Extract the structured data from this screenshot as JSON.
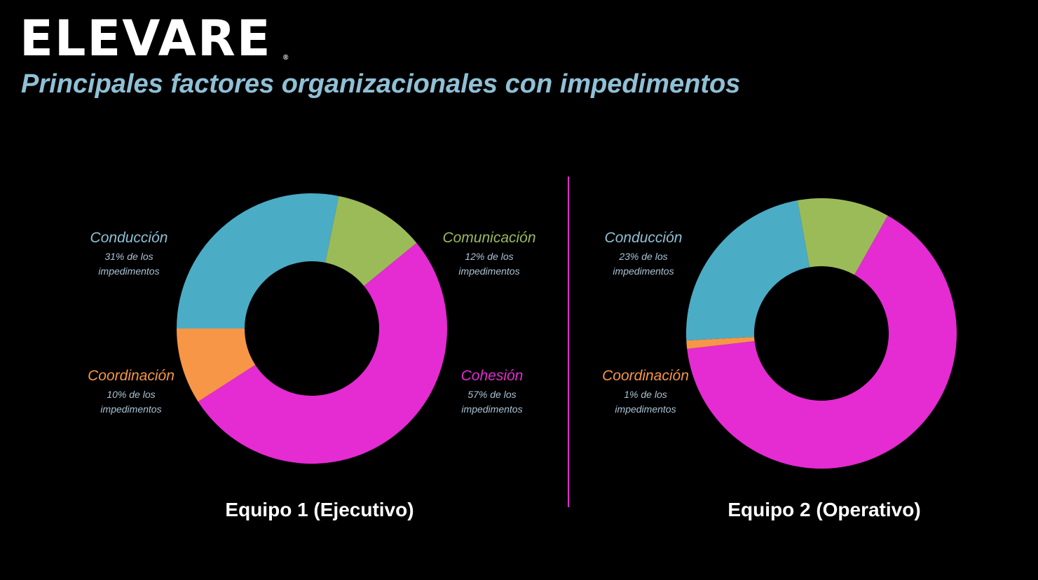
{
  "header": {
    "brand": "ELEVARE",
    "brand_mark": "®",
    "title": "Principales factores organizacionales con impedimentos"
  },
  "colors": {
    "conduccion": "#4bacc6",
    "comunicacion": "#9bbb59",
    "cohesion": "#e52bd2",
    "coordinacion": "#f79646"
  },
  "chart_data": [
    {
      "type": "pie",
      "variant": "donut",
      "title": "Equipo 1 (Ejecutivo)",
      "slices": [
        {
          "name": "Conducción",
          "value": 31,
          "color": "#4bacc6",
          "label_line1": "31% de los",
          "label_line2": "impedimentos"
        },
        {
          "name": "Comunicación",
          "value": 12,
          "color": "#9bbb59",
          "label_line1": "12% de los",
          "label_line2": "impedimentos"
        },
        {
          "name": "Cohesión",
          "value": 57,
          "color": "#e52bd2",
          "label_line1": "57% de los",
          "label_line2": "impedimentos"
        },
        {
          "name": "Coordinación",
          "value": 10,
          "color": "#f79646",
          "label_line1": "10% de los",
          "label_line2": "impedimentos"
        }
      ]
    },
    {
      "type": "pie",
      "variant": "donut",
      "title": "Equipo 2  (Operativo)",
      "slices": [
        {
          "name": "Conducción",
          "value": 23,
          "color": "#4bacc6",
          "label_line1": "23% de los",
          "label_line2": "impedimentos"
        },
        {
          "name": "Comunicación",
          "value": 11,
          "color": "#9bbb59",
          "label_line1": "",
          "label_line2": ""
        },
        {
          "name": "Cohesión",
          "value": 65,
          "color": "#e52bd2",
          "label_line1": "",
          "label_line2": ""
        },
        {
          "name": "Coordinación",
          "value": 1,
          "color": "#f79646",
          "label_line1": "1% de los",
          "label_line2": "impedimentos"
        }
      ]
    }
  ]
}
